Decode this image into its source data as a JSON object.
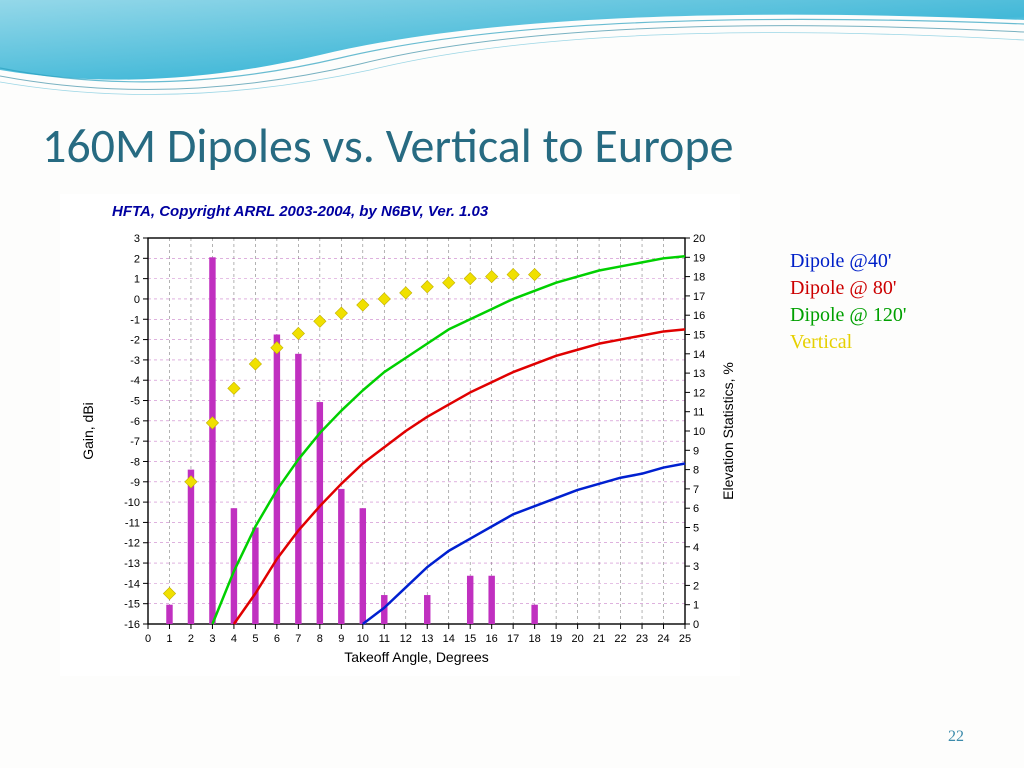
{
  "title": "160M Dipoles vs. Vertical to Europe",
  "page_number": "22",
  "legend": {
    "items": [
      {
        "label": "Dipole @40'",
        "color": "#0020c8"
      },
      {
        "label": "Dipole @ 80'",
        "color": "#cc0000"
      },
      {
        "label": "Dipole @ 120'",
        "color": "#00a000"
      },
      {
        "label": "Vertical",
        "color": "#e6d000"
      }
    ]
  },
  "chart": {
    "type": "combo-line-bar-scatter",
    "background_color": "#ffffff",
    "caption": "HFTA, Copyright ARRL 2003-2004, by N6BV, Ver. 1.03",
    "caption_color": "#0000a0",
    "caption_fontsize": 15,
    "caption_fontweight": "bold",
    "xlabel": "Takeoff Angle, Degrees",
    "ylabel_left": "Gain, dBi",
    "ylabel_right": "Elevation Statistics, %",
    "label_fontsize": 14,
    "tick_fontsize": 11,
    "axis_color": "#000000",
    "major_grid_color": "#808080",
    "minor_grid_color": "#b040b0",
    "minor_grid_dash": "3 3",
    "major_grid_dash": "3 3",
    "x": {
      "min": 0,
      "max": 25,
      "tick_step": 1
    },
    "y_left": {
      "min": -16,
      "max": 3,
      "tick_step": 1
    },
    "y_right": {
      "min": 0,
      "max": 20,
      "tick_step": 1
    },
    "bar_series": {
      "name": "Elevation statistics",
      "color": "#c030c0",
      "axis": "right",
      "bar_width_x": 0.3,
      "data": [
        [
          1,
          1
        ],
        [
          2,
          8
        ],
        [
          3,
          19
        ],
        [
          4,
          6
        ],
        [
          5,
          5
        ],
        [
          6,
          15
        ],
        [
          7,
          14
        ],
        [
          8,
          11.5
        ],
        [
          9,
          7
        ],
        [
          10,
          6
        ],
        [
          11,
          1.5
        ],
        [
          13,
          1.5
        ],
        [
          15,
          2.5
        ],
        [
          16,
          2.5
        ],
        [
          18,
          1
        ]
      ]
    },
    "line_series": [
      {
        "name": "Dipole @120'",
        "color": "#00d000",
        "width": 2.5,
        "axis": "left",
        "data": [
          [
            3,
            -16
          ],
          [
            4,
            -13.4
          ],
          [
            5,
            -11.2
          ],
          [
            6,
            -9.4
          ],
          [
            7,
            -7.9
          ],
          [
            8,
            -6.6
          ],
          [
            9,
            -5.5
          ],
          [
            10,
            -4.5
          ],
          [
            11,
            -3.6
          ],
          [
            12,
            -2.9
          ],
          [
            13,
            -2.2
          ],
          [
            14,
            -1.5
          ],
          [
            15,
            -1.0
          ],
          [
            16,
            -0.5
          ],
          [
            17,
            0.0
          ],
          [
            18,
            0.4
          ],
          [
            19,
            0.8
          ],
          [
            20,
            1.1
          ],
          [
            21,
            1.4
          ],
          [
            22,
            1.6
          ],
          [
            23,
            1.8
          ],
          [
            24,
            2.0
          ],
          [
            25,
            2.1
          ]
        ]
      },
      {
        "name": "Dipole @80'",
        "color": "#e00000",
        "width": 2.5,
        "axis": "left",
        "data": [
          [
            4,
            -16
          ],
          [
            5,
            -14.5
          ],
          [
            6,
            -12.8
          ],
          [
            7,
            -11.4
          ],
          [
            8,
            -10.2
          ],
          [
            9,
            -9.1
          ],
          [
            10,
            -8.1
          ],
          [
            11,
            -7.3
          ],
          [
            12,
            -6.5
          ],
          [
            13,
            -5.8
          ],
          [
            14,
            -5.2
          ],
          [
            15,
            -4.6
          ],
          [
            16,
            -4.1
          ],
          [
            17,
            -3.6
          ],
          [
            18,
            -3.2
          ],
          [
            19,
            -2.8
          ],
          [
            20,
            -2.5
          ],
          [
            21,
            -2.2
          ],
          [
            22,
            -2.0
          ],
          [
            23,
            -1.8
          ],
          [
            24,
            -1.6
          ],
          [
            25,
            -1.5
          ]
        ]
      },
      {
        "name": "Dipole @40'",
        "color": "#0020d0",
        "width": 2.5,
        "axis": "left",
        "data": [
          [
            10,
            -16
          ],
          [
            11,
            -15.2
          ],
          [
            12,
            -14.2
          ],
          [
            13,
            -13.2
          ],
          [
            14,
            -12.4
          ],
          [
            15,
            -11.8
          ],
          [
            16,
            -11.2
          ],
          [
            17,
            -10.6
          ],
          [
            18,
            -10.2
          ],
          [
            19,
            -9.8
          ],
          [
            20,
            -9.4
          ],
          [
            21,
            -9.1
          ],
          [
            22,
            -8.8
          ],
          [
            23,
            -8.6
          ],
          [
            24,
            -8.3
          ],
          [
            25,
            -8.1
          ]
        ]
      }
    ],
    "scatter_series": {
      "name": "Vertical",
      "color": "#f0e000",
      "marker": "diamond",
      "marker_size": 8,
      "stroke": "#c0b000",
      "axis": "left",
      "data": [
        [
          1,
          -14.5
        ],
        [
          2,
          -9
        ],
        [
          3,
          -6.1
        ],
        [
          4,
          -4.4
        ],
        [
          5,
          -3.2
        ],
        [
          6,
          -2.4
        ],
        [
          7,
          -1.7
        ],
        [
          8,
          -1.1
        ],
        [
          9,
          -0.7
        ],
        [
          10,
          -0.3
        ],
        [
          11,
          0.0
        ],
        [
          12,
          0.3
        ],
        [
          13,
          0.6
        ],
        [
          14,
          0.8
        ],
        [
          15,
          1.0
        ],
        [
          16,
          1.1
        ],
        [
          17,
          1.2
        ],
        [
          18,
          1.2
        ]
      ]
    }
  }
}
